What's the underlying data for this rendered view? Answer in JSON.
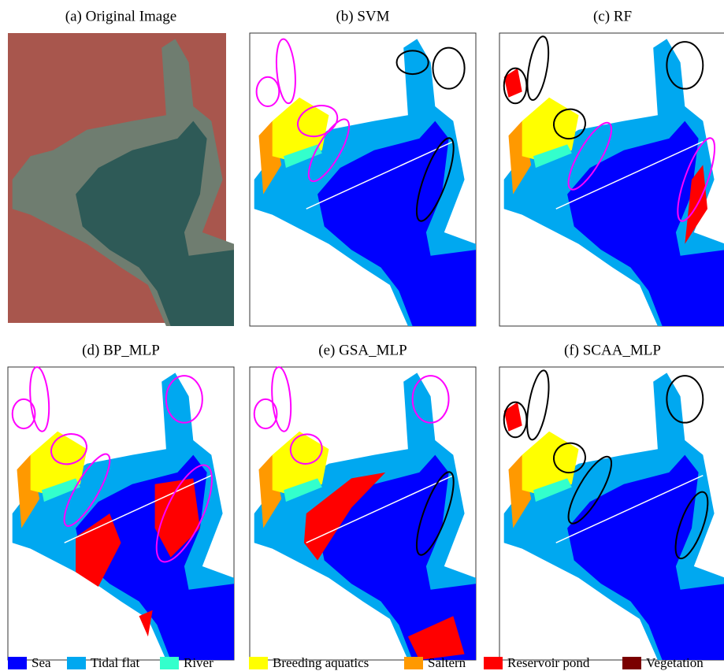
{
  "panels": [
    {
      "title": "(a) Original Image"
    },
    {
      "title": "(b) SVM"
    },
    {
      "title": "(c) RF"
    },
    {
      "title": "(d) BP_MLP"
    },
    {
      "title": "(e) GSA_MLP"
    },
    {
      "title": "(f) SCAA_MLP"
    }
  ],
  "legend": [
    {
      "label": "Sea",
      "color": "#0000ff"
    },
    {
      "label": "Tidal flat",
      "color": "#00a8f0"
    },
    {
      "label": "River",
      "color": "#33ffcc"
    },
    {
      "label": "Breeding aquatics",
      "color": "#ffff00"
    },
    {
      "label": "Saltern",
      "color": "#ff9900"
    },
    {
      "label": "Reservoir pond",
      "color": "#ff0000"
    },
    {
      "label": "Vegetation",
      "color": "#7a0000"
    }
  ]
}
